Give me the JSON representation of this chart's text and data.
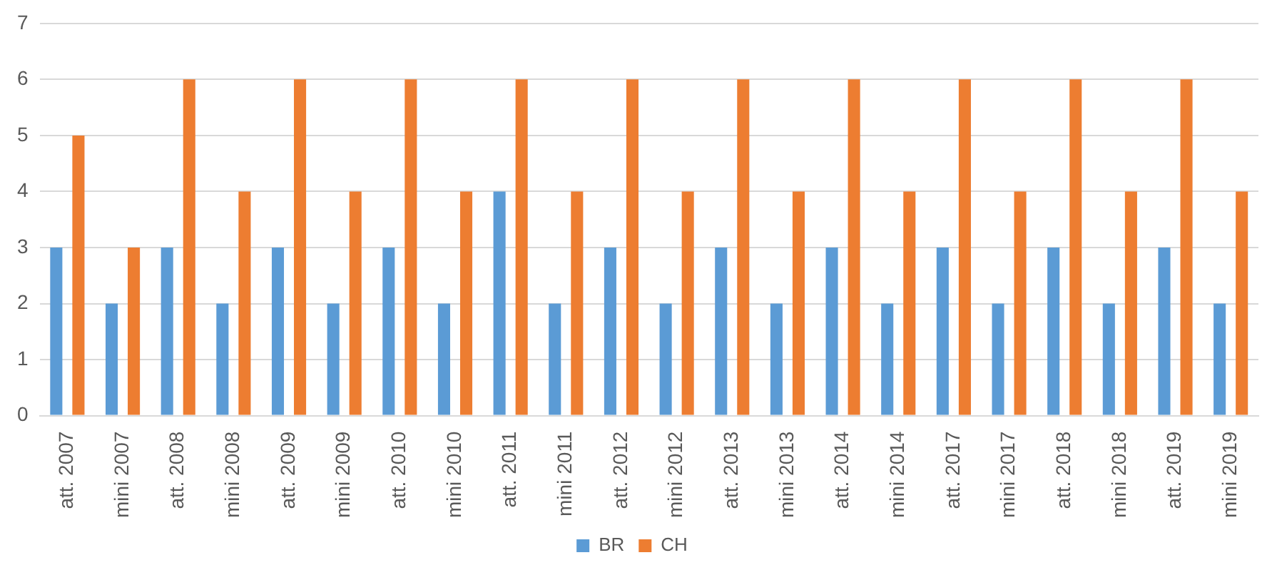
{
  "chart_data": {
    "type": "bar",
    "categories": [
      "att. 2007",
      "mini 2007",
      "att. 2008",
      "mini 2008",
      "att. 2009",
      "mini 2009",
      "att. 2010",
      "mini 2010",
      "att. 2011",
      "mini 2011",
      "att. 2012",
      "mini 2012",
      "att. 2013",
      "mini 2013",
      "att. 2014",
      "mini 2014",
      "att. 2017",
      "mini 2017",
      "att. 2018",
      "mini 2018",
      "att. 2019",
      "mini 2019"
    ],
    "series": [
      {
        "name": "BR",
        "color": "#5b9bd5",
        "values": [
          3,
          2,
          3,
          2,
          3,
          2,
          3,
          2,
          4,
          2,
          3,
          2,
          3,
          2,
          3,
          2,
          3,
          2,
          3,
          2,
          3,
          2
        ]
      },
      {
        "name": "CH",
        "color": "#ed7d31",
        "values": [
          5,
          3,
          6,
          4,
          6,
          4,
          6,
          4,
          6,
          4,
          6,
          4,
          6,
          4,
          6,
          4,
          6,
          4,
          6,
          4,
          6,
          4
        ]
      }
    ],
    "ylim": [
      0,
      7
    ],
    "yticks": [
      0,
      1,
      2,
      3,
      4,
      5,
      6,
      7
    ],
    "grid": "y",
    "legend": "bottom"
  }
}
